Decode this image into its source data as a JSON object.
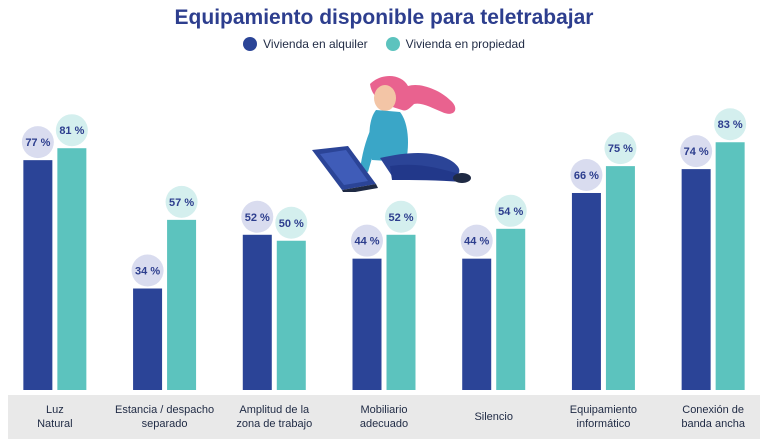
{
  "chart_data": {
    "type": "bar",
    "title": "Equipamiento disponible para teletrabajar",
    "categories": [
      [
        "Luz",
        "Natural"
      ],
      [
        "Estancia / despacho",
        "separado"
      ],
      [
        "Amplitud de la",
        "zona de trabajo"
      ],
      [
        "Mobiliario",
        "adecuado"
      ],
      [
        "Silencio"
      ],
      [
        "Equipamiento",
        "informático"
      ],
      [
        "Conexión de",
        "banda ancha"
      ]
    ],
    "series": [
      {
        "name": "Vivienda en alquiler",
        "color": "#2b4497",
        "values": [
          77,
          34,
          52,
          44,
          44,
          66,
          74
        ],
        "labels": [
          "77 %",
          "34 %",
          "52 %",
          "44 %",
          "44 %",
          "66 %",
          "74 %"
        ]
      },
      {
        "name": "Vivienda en propiedad",
        "color": "#5cc3be",
        "values": [
          81,
          57,
          50,
          52,
          54,
          75,
          83
        ],
        "labels": [
          "81 %",
          "57 %",
          "50 %",
          "52 %",
          "54 %",
          "75 %",
          "83 %"
        ]
      }
    ],
    "ylim": [
      0,
      100
    ],
    "unit": "%",
    "grid": false,
    "legend": "top-center",
    "label_bubble_colors": {
      "alquiler": "#d9dcef",
      "propiedad": "#d4efee"
    },
    "axis_band_color": "#e9e9e9"
  },
  "illustration": {
    "name": "woman-with-laptop-illustration"
  }
}
